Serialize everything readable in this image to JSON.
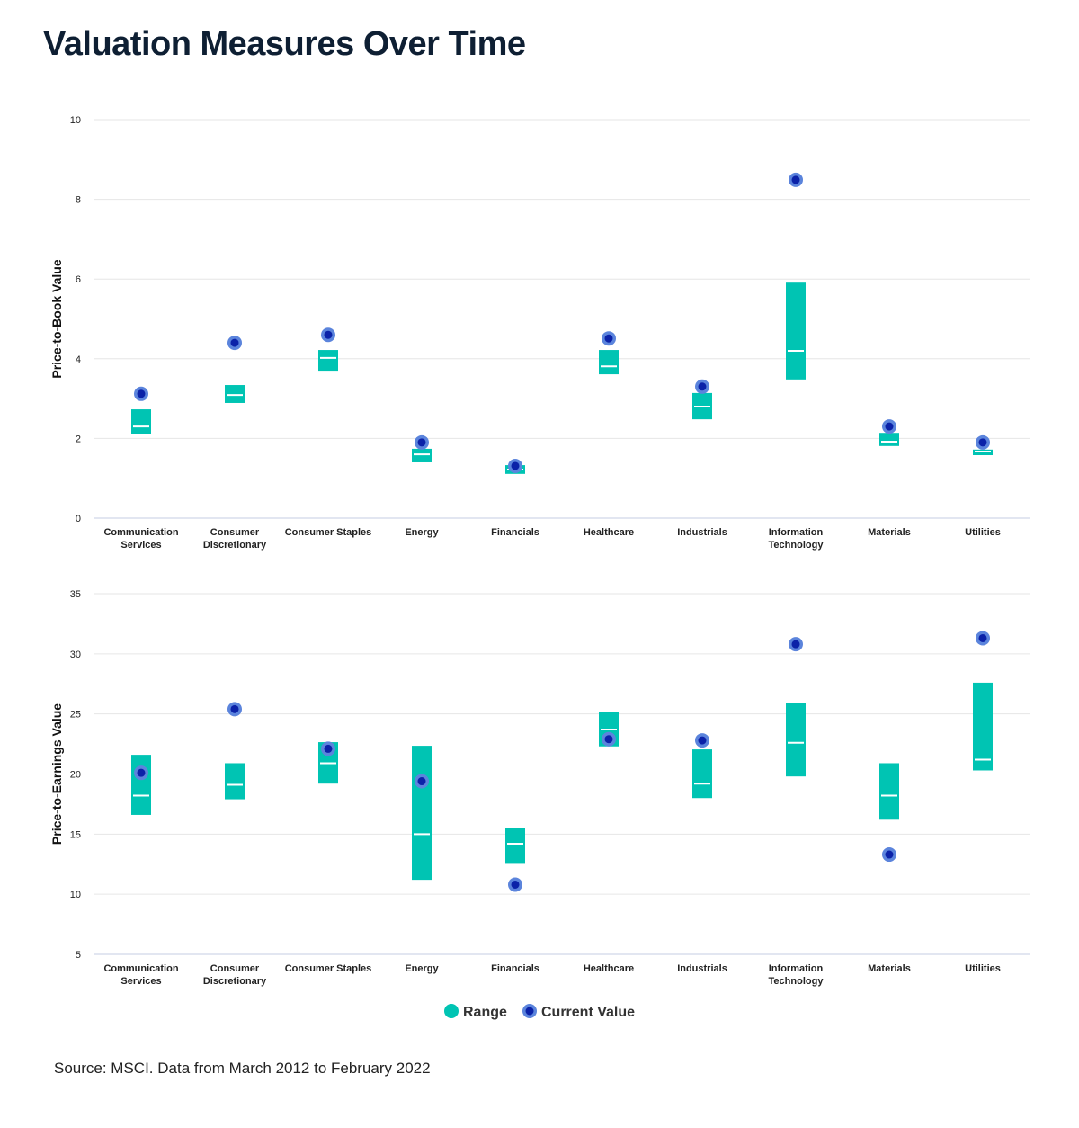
{
  "title": "Valuation Measures Over Time",
  "source": "Source: MSCI. Data from March 2012 to February 2022",
  "colors": {
    "range": "#00c4b3",
    "current_outer": "#5b84dc",
    "current_inner": "#0b22a8",
    "median": "#ffffff"
  },
  "legend": {
    "range": "Range",
    "current": "Current Value"
  },
  "chart_data": [
    {
      "type": "range-dot",
      "ylabel": "Price-to-Book Value",
      "ylim": [
        0,
        10
      ],
      "yticks": [
        0,
        2,
        4,
        6,
        8,
        10
      ],
      "grid": true,
      "categories": [
        [
          "Communication",
          "Services"
        ],
        [
          "Consumer",
          "Discretionary"
        ],
        [
          "Consumer Staples"
        ],
        [
          "Energy"
        ],
        [
          "Financials"
        ],
        [
          "Healthcare"
        ],
        [
          "Industrials"
        ],
        [
          "Information",
          "Technology"
        ],
        [
          "Materials"
        ],
        [
          "Utilities"
        ]
      ],
      "low": [
        2.1,
        2.89,
        3.7,
        1.4,
        1.11,
        3.61,
        2.48,
        3.48,
        1.81,
        1.58
      ],
      "high": [
        2.73,
        3.34,
        4.22,
        1.74,
        1.33,
        4.22,
        3.14,
        5.91,
        2.14,
        1.72
      ],
      "median": [
        2.3,
        3.09,
        4.02,
        1.6,
        1.22,
        3.81,
        2.8,
        4.2,
        1.92,
        1.67
      ],
      "current": [
        3.12,
        4.4,
        4.6,
        1.9,
        1.31,
        4.51,
        3.3,
        8.49,
        2.3,
        1.9
      ]
    },
    {
      "type": "range-dot",
      "ylabel": "Price-to-Earnings Value",
      "ylim": [
        5,
        35
      ],
      "yticks": [
        5,
        10,
        15,
        20,
        25,
        30,
        35
      ],
      "grid": true,
      "categories": [
        [
          "Communication",
          "Services"
        ],
        [
          "Consumer",
          "Discretionary"
        ],
        [
          "Consumer Staples"
        ],
        [
          "Energy"
        ],
        [
          "Financials"
        ],
        [
          "Healthcare"
        ],
        [
          "Industrials"
        ],
        [
          "Information",
          "Technology"
        ],
        [
          "Materials"
        ],
        [
          "Utilities"
        ]
      ],
      "low": [
        16.6,
        17.9,
        19.2,
        11.2,
        12.6,
        22.3,
        18.0,
        19.8,
        16.2,
        20.3
      ],
      "high": [
        21.6,
        20.9,
        22.65,
        22.35,
        15.5,
        25.2,
        22.05,
        25.9,
        20.9,
        27.6
      ],
      "median": [
        18.2,
        19.1,
        20.9,
        15.0,
        14.2,
        23.7,
        19.2,
        22.6,
        18.2,
        21.2
      ],
      "current": [
        20.1,
        25.4,
        22.1,
        19.4,
        10.8,
        22.9,
        22.8,
        30.8,
        13.3,
        31.3
      ]
    }
  ]
}
